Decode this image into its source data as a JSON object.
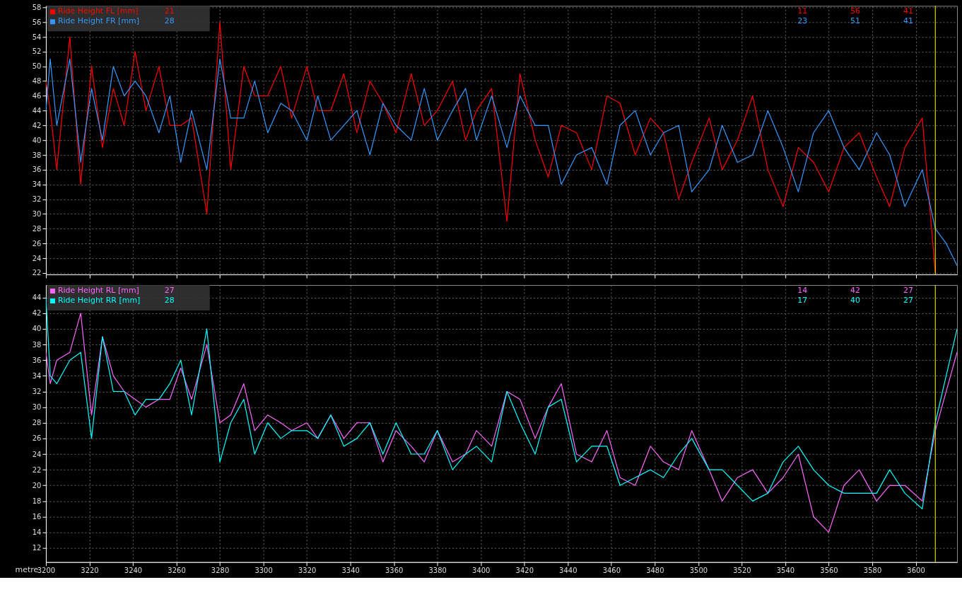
{
  "chart_data": [
    {
      "type": "line",
      "legend": "top left",
      "grid": true,
      "tick_labels": "y",
      "x": [
        3200,
        3202,
        3205,
        3211,
        3216,
        3221,
        3226,
        3231,
        3236,
        3241,
        3246,
        3252,
        3257,
        3262,
        3267,
        3274,
        3280,
        3285,
        3291,
        3296,
        3302,
        3308,
        3313,
        3320,
        3325,
        3331,
        3337,
        3343,
        3349,
        3355,
        3361,
        3368,
        3374,
        3380,
        3387,
        3393,
        3398,
        3405,
        3412,
        3418,
        3425,
        3431,
        3437,
        3444,
        3451,
        3458,
        3464,
        3471,
        3478,
        3484,
        3491,
        3497,
        3505,
        3511,
        3518,
        3525,
        3532,
        3539,
        3546,
        3553,
        3560,
        3567,
        3574,
        3582,
        3588,
        3595,
        3603,
        3609,
        3614,
        3619
      ],
      "series": [
        {
          "name": "Ride Height FL [mm]",
          "color": "#ff0000",
          "values": [
            48,
            44,
            36,
            54,
            34,
            50,
            39,
            47,
            42,
            52,
            44,
            50,
            42,
            42,
            43,
            30,
            56,
            36,
            50,
            46,
            46,
            50,
            43,
            50,
            44,
            44,
            49,
            41,
            48,
            45,
            41,
            49,
            42,
            44,
            48,
            40,
            44,
            47,
            29,
            49,
            40,
            35,
            42,
            41,
            36,
            46,
            45,
            38,
            43,
            41,
            32,
            37,
            43,
            36,
            40,
            46,
            36,
            31,
            39,
            37,
            33,
            39,
            41,
            35,
            31,
            39,
            43,
            22,
            null,
            null
          ]
        },
        {
          "name": "Ride Height FR [mm]",
          "color": "#3399ff",
          "values": [
            44,
            51,
            42,
            51,
            37,
            47,
            40,
            50,
            46,
            48,
            46,
            41,
            46,
            37,
            44,
            36,
            51,
            43,
            43,
            48,
            41,
            45,
            44,
            40,
            46,
            40,
            42,
            44,
            38,
            45,
            42,
            40,
            47,
            40,
            44,
            47,
            40,
            46,
            39,
            46,
            42,
            42,
            34,
            38,
            39,
            34,
            42,
            44,
            38,
            41,
            42,
            33,
            36,
            42,
            37,
            38,
            44,
            39,
            33,
            41,
            44,
            39,
            36,
            41,
            38,
            31,
            36,
            28,
            26,
            23
          ]
        }
      ],
      "xlim": [
        3200,
        3619
      ],
      "xticks": [
        3200,
        3220,
        3240,
        3260,
        3280,
        3300,
        3320,
        3340,
        3360,
        3380,
        3400,
        3420,
        3440,
        3460,
        3480,
        3500,
        3520,
        3540,
        3560,
        3580,
        3600
      ],
      "ylim": [
        21.8,
        58.2
      ],
      "yticks": [
        22,
        24,
        26,
        28,
        30,
        32,
        34,
        36,
        38,
        40,
        42,
        44,
        46,
        48,
        50,
        52,
        54,
        56,
        58
      ],
      "ref_lines": [
        {
          "axis": "x",
          "value": 3609,
          "color": "#ffff00"
        }
      ],
      "annotations": [
        "21",
        "28",
        "11",
        "56",
        "41",
        "23",
        "51",
        "41"
      ]
    },
    {
      "type": "line",
      "legend": "top left",
      "grid": true,
      "xlabel": "metre",
      "x": [
        3200,
        3202,
        3205,
        3211,
        3216,
        3221,
        3226,
        3231,
        3236,
        3241,
        3246,
        3252,
        3257,
        3262,
        3267,
        3274,
        3280,
        3285,
        3291,
        3296,
        3302,
        3308,
        3313,
        3320,
        3325,
        3331,
        3337,
        3343,
        3349,
        3355,
        3361,
        3368,
        3374,
        3380,
        3387,
        3393,
        3398,
        3405,
        3412,
        3418,
        3425,
        3431,
        3437,
        3444,
        3451,
        3458,
        3464,
        3471,
        3478,
        3484,
        3491,
        3497,
        3505,
        3511,
        3518,
        3525,
        3532,
        3539,
        3546,
        3553,
        3560,
        3567,
        3574,
        3582,
        3588,
        3595,
        3603,
        3609,
        3619
      ],
      "series": [
        {
          "name": "Ride Height RL [mm]",
          "color": "#ff66ff",
          "values": [
            37,
            33,
            36,
            37,
            42,
            29,
            39,
            34,
            32,
            31,
            30,
            31,
            31,
            35,
            31,
            38,
            28,
            29,
            33,
            27,
            29,
            28,
            27,
            28,
            26,
            29,
            26,
            28,
            28,
            23,
            27,
            25,
            23,
            27,
            23,
            24,
            27,
            25,
            32,
            31,
            26,
            30,
            33,
            24,
            23,
            27,
            21,
            20,
            25,
            23,
            22,
            27,
            22,
            18,
            21,
            22,
            19,
            21,
            24,
            16,
            14,
            20,
            22,
            18,
            20,
            20,
            18,
            27,
            37
          ]
        },
        {
          "name": "Ride Height RR [mm]",
          "color": "#00ffff",
          "values": [
            44,
            34,
            33,
            36,
            37,
            26,
            39,
            32,
            32,
            29,
            31,
            31,
            33,
            36,
            29,
            40,
            23,
            28,
            31,
            24,
            28,
            26,
            27,
            27,
            26,
            29,
            25,
            26,
            28,
            24,
            28,
            24,
            24,
            27,
            22,
            24,
            25,
            23,
            32,
            28,
            24,
            30,
            31,
            23,
            25,
            25,
            20,
            21,
            22,
            21,
            24,
            26,
            22,
            22,
            20,
            18,
            19,
            23,
            25,
            22,
            20,
            19,
            19,
            19,
            22,
            19,
            17,
            28,
            40
          ]
        }
      ],
      "xlim": [
        3200,
        3619
      ],
      "xticks": [
        3200,
        3220,
        3240,
        3260,
        3280,
        3300,
        3320,
        3340,
        3360,
        3380,
        3400,
        3420,
        3440,
        3460,
        3480,
        3500,
        3520,
        3540,
        3560,
        3580,
        3600
      ],
      "ylim": [
        10.2,
        45.6
      ],
      "yticks": [
        12,
        14,
        16,
        18,
        20,
        22,
        24,
        26,
        28,
        30,
        32,
        34,
        36,
        38,
        40,
        42,
        44
      ],
      "ref_lines": [
        {
          "axis": "x",
          "value": 3609,
          "color": "#ffff00"
        }
      ],
      "annotations": [
        "27",
        "28",
        "14",
        "42",
        "27",
        "17",
        "40",
        "27"
      ]
    }
  ]
}
